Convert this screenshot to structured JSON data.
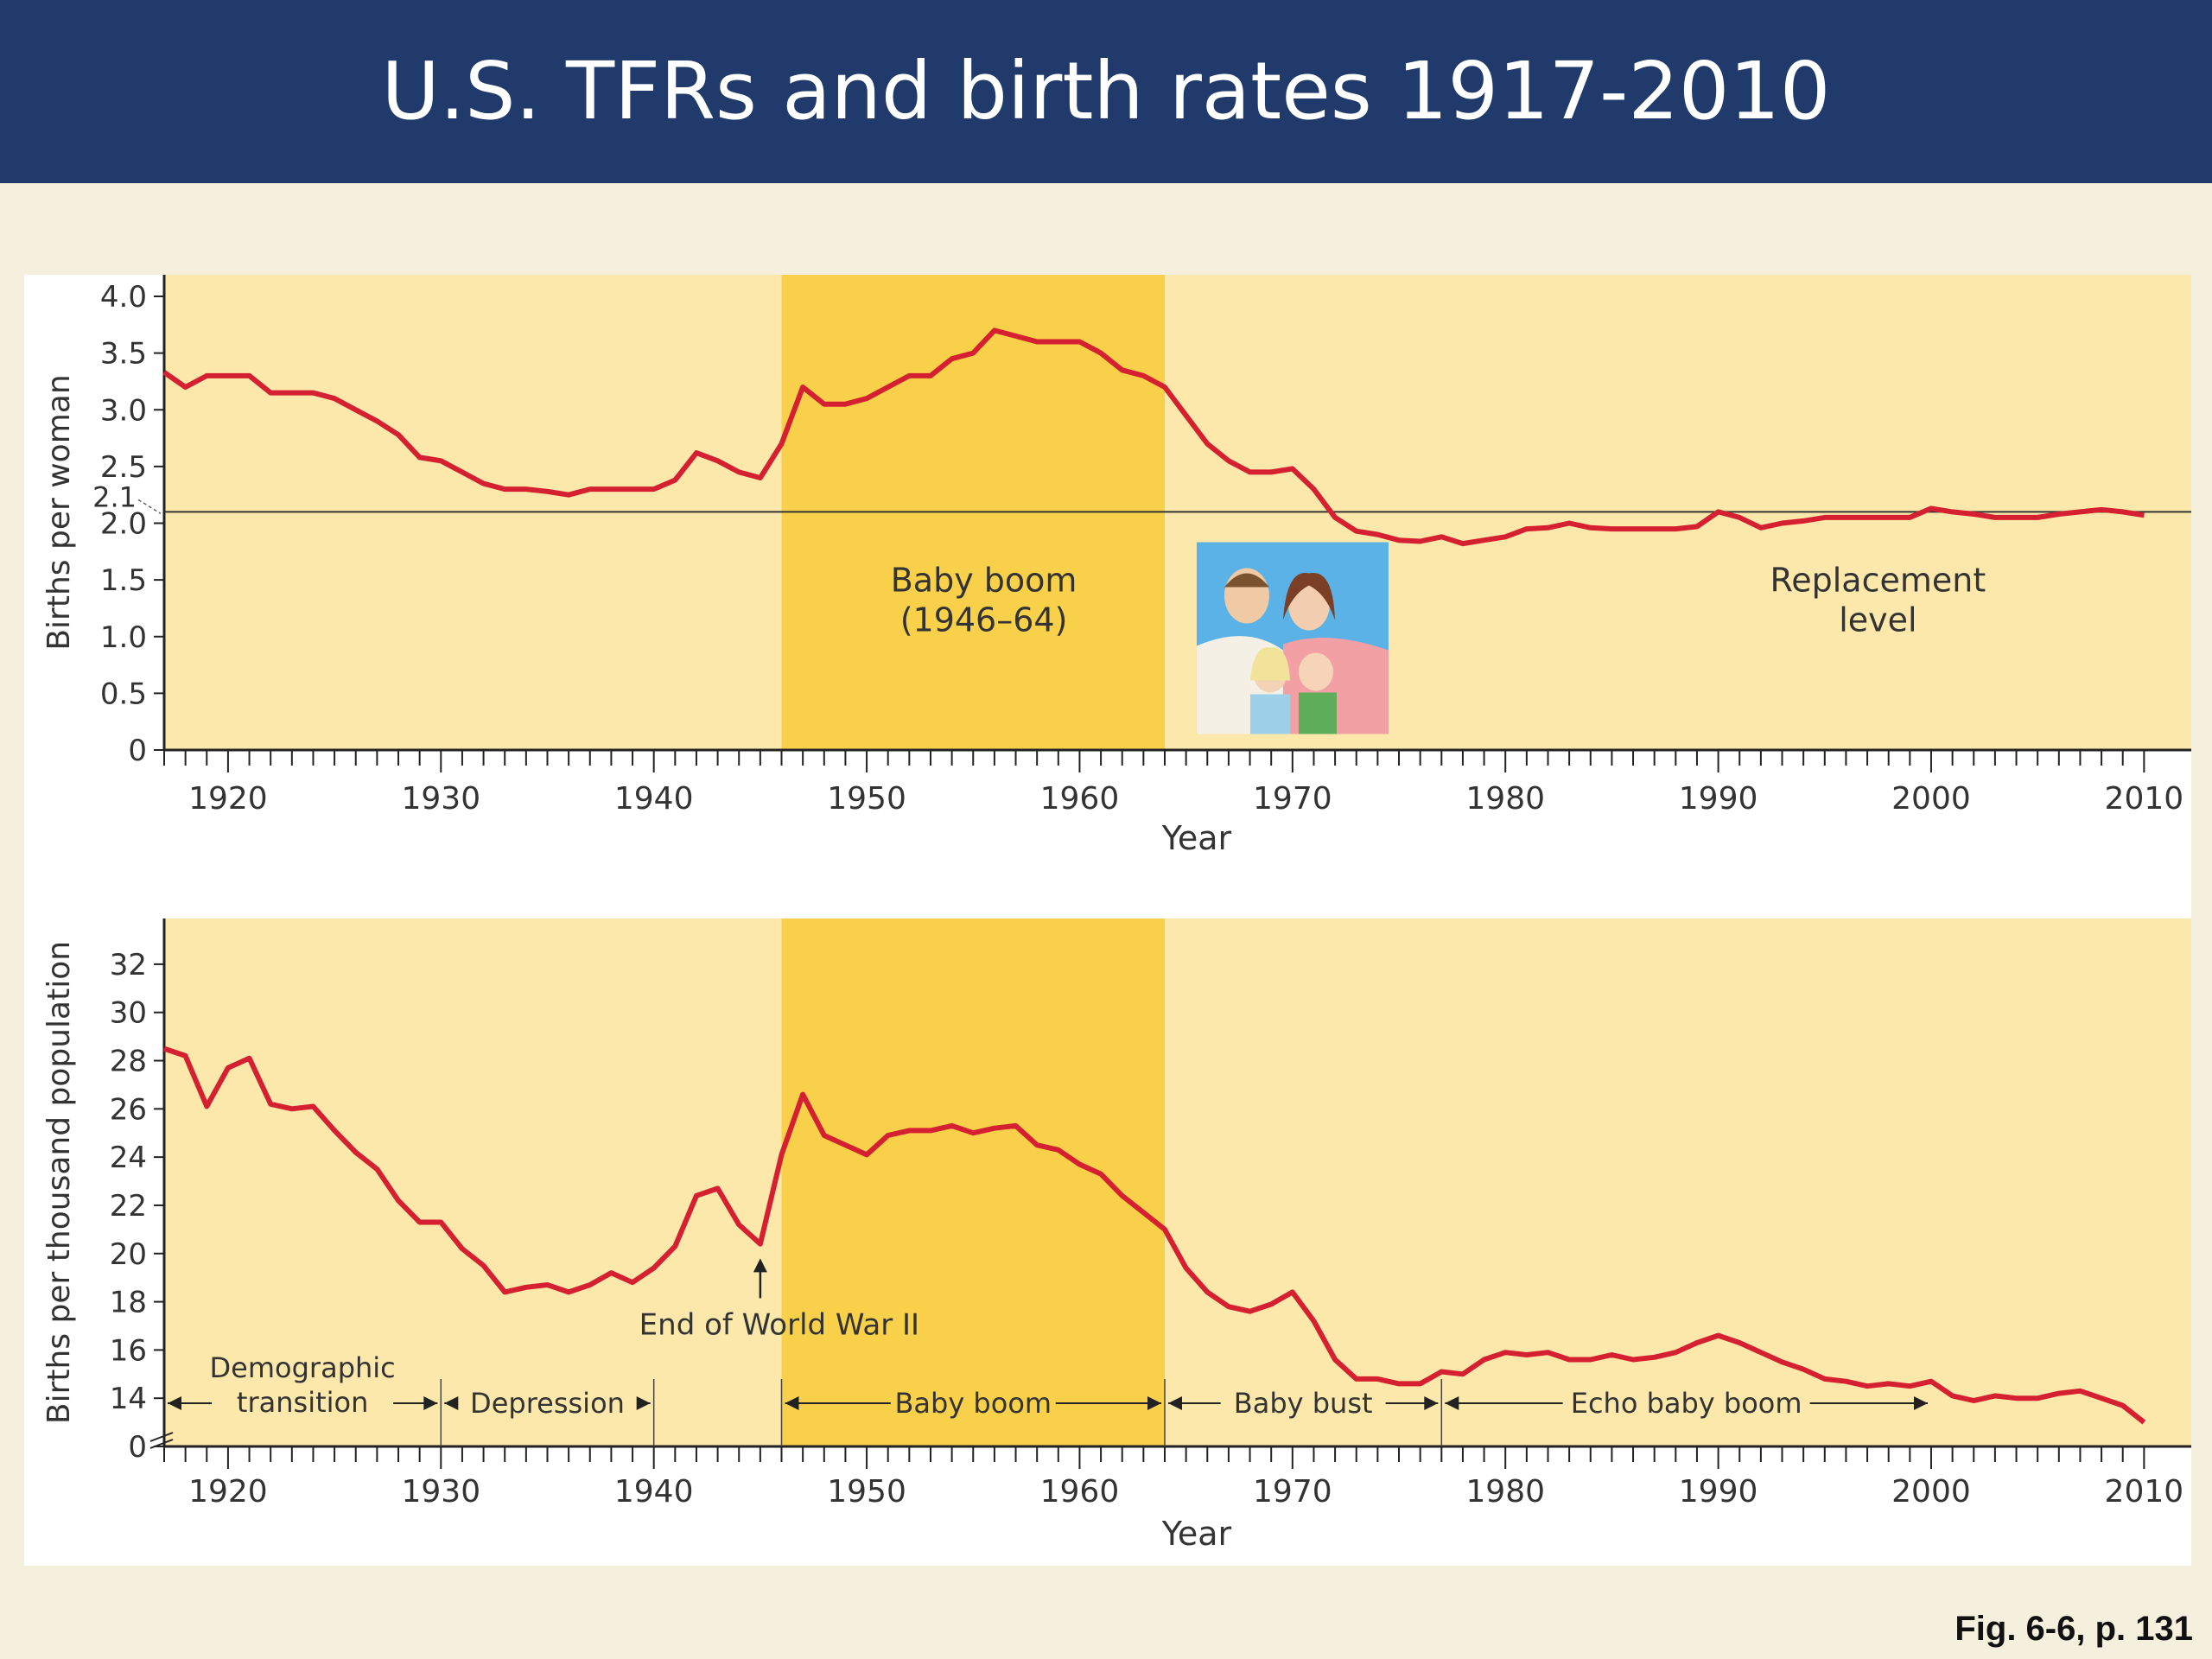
{
  "slide": {
    "title": "U.S. TFRs and birth rates 1917-2010",
    "caption": "Fig. 6-6, p. 131"
  },
  "colors": {
    "title_bar": "#1f3a6b",
    "background": "#f5efdd",
    "plot_light": "#fbe8aa",
    "plot_boom": "#f9d04a",
    "series_line": "#d42030",
    "reference_line": "#333333"
  },
  "chart_data": [
    {
      "type": "line",
      "xlabel": "Year",
      "ylabel": "Births per woman",
      "xlim": [
        1917,
        2011
      ],
      "ylim": [
        0,
        4.0
      ],
      "x_ticks": [
        1920,
        1930,
        1940,
        1950,
        1960,
        1970,
        1980,
        1990,
        2000,
        2010
      ],
      "y_ticks": [
        "0",
        "0.5",
        "1.0",
        "1.5",
        "2.0",
        "2.5",
        "3.0",
        "3.5",
        "4.0"
      ],
      "y_tick_values": [
        0,
        0.5,
        1.0,
        1.5,
        2.0,
        2.5,
        3.0,
        3.5,
        4.0
      ],
      "reference_line": {
        "value": 2.1,
        "label": "2.1"
      },
      "shaded_span": {
        "from": 1946,
        "to": 1964
      },
      "annotations": [
        {
          "lines": [
            "Baby boom",
            "(1946–64)"
          ],
          "x": 1955.5,
          "y": 1.4
        },
        {
          "lines": [
            "Replacement",
            "level"
          ],
          "x": 1997.5,
          "y": 1.4
        }
      ],
      "image": {
        "name": "family-photo",
        "description_icon": "family-photo"
      },
      "series": [
        {
          "x": [
            1917,
            1918,
            1919,
            1920,
            1921,
            1922,
            1923,
            1924,
            1925,
            1926,
            1927,
            1928,
            1929,
            1930,
            1931,
            1932,
            1933,
            1934,
            1935,
            1936,
            1937,
            1938,
            1939,
            1940,
            1941,
            1942,
            1943,
            1944,
            1945,
            1946,
            1947,
            1948,
            1949,
            1950,
            1951,
            1952,
            1953,
            1954,
            1955,
            1956,
            1957,
            1958,
            1959,
            1960,
            1961,
            1962,
            1963,
            1964,
            1965,
            1966,
            1967,
            1968,
            1969,
            1970,
            1971,
            1972,
            1973,
            1974,
            1975,
            1976,
            1977,
            1978,
            1979,
            1980,
            1981,
            1982,
            1983,
            1984,
            1985,
            1986,
            1987,
            1988,
            1989,
            1990,
            1991,
            1992,
            1993,
            1994,
            1995,
            1996,
            1997,
            1998,
            1999,
            2000,
            2001,
            2002,
            2003,
            2004,
            2005,
            2006,
            2007,
            2008,
            2009,
            2010
          ],
          "values": [
            3.33,
            3.2,
            3.3,
            3.3,
            3.3,
            3.15,
            3.15,
            3.15,
            3.1,
            3.0,
            2.9,
            2.78,
            2.58,
            2.55,
            2.45,
            2.35,
            2.3,
            2.3,
            2.28,
            2.25,
            2.3,
            2.3,
            2.3,
            2.3,
            2.38,
            2.62,
            2.55,
            2.45,
            2.4,
            2.7,
            3.2,
            3.05,
            3.05,
            3.1,
            3.2,
            3.3,
            3.3,
            3.45,
            3.5,
            3.7,
            3.65,
            3.6,
            3.6,
            3.6,
            3.5,
            3.35,
            3.3,
            3.2,
            2.95,
            2.7,
            2.55,
            2.45,
            2.45,
            2.48,
            2.3,
            2.05,
            1.93,
            1.9,
            1.85,
            1.84,
            1.88,
            1.82,
            1.85,
            1.88,
            1.95,
            1.96,
            2.0,
            1.96,
            1.95,
            1.95,
            1.95,
            1.95,
            1.97,
            2.1,
            2.05,
            1.96,
            2.0,
            2.02,
            2.05,
            2.05,
            2.05,
            2.05,
            2.05,
            2.13,
            2.1,
            2.08,
            2.05,
            2.05,
            2.05,
            2.08,
            2.1,
            2.12,
            2.1,
            2.07
          ]
        }
      ]
    },
    {
      "type": "line",
      "xlabel": "Year",
      "ylabel": "Births per thousand population",
      "xlim": [
        1917,
        2011
      ],
      "ylim": [
        12,
        33
      ],
      "axis_break": true,
      "x_ticks": [
        1920,
        1930,
        1940,
        1950,
        1960,
        1970,
        1980,
        1990,
        2000,
        2010
      ],
      "y_ticks": [
        "0",
        "14",
        "16",
        "18",
        "20",
        "22",
        "24",
        "26",
        "28",
        "30",
        "32"
      ],
      "y_tick_values": [
        12,
        14,
        16,
        18,
        20,
        22,
        24,
        26,
        28,
        30,
        32
      ],
      "shaded_span": {
        "from": 1946,
        "to": 1964
      },
      "arrow_annotation": {
        "label": "End of World War II",
        "x": 1945,
        "y": 20.3
      },
      "periods": [
        {
          "label": [
            "Demographic",
            "transition"
          ],
          "from": 1917,
          "to": 1930
        },
        {
          "label": [
            "Depression"
          ],
          "from": 1930,
          "to": 1940
        },
        {
          "label": [
            "Baby boom"
          ],
          "from": 1946,
          "to": 1964
        },
        {
          "label": [
            "Baby bust"
          ],
          "from": 1964,
          "to": 1977
        },
        {
          "label": [
            "Echo baby boom"
          ],
          "from": 1977,
          "to": 2000
        }
      ],
      "series": [
        {
          "x": [
            1917,
            1918,
            1919,
            1920,
            1921,
            1922,
            1923,
            1924,
            1925,
            1926,
            1927,
            1928,
            1929,
            1930,
            1931,
            1932,
            1933,
            1934,
            1935,
            1936,
            1937,
            1938,
            1939,
            1940,
            1941,
            1942,
            1943,
            1944,
            1945,
            1946,
            1947,
            1948,
            1949,
            1950,
            1951,
            1952,
            1953,
            1954,
            1955,
            1956,
            1957,
            1958,
            1959,
            1960,
            1961,
            1962,
            1963,
            1964,
            1965,
            1966,
            1967,
            1968,
            1969,
            1970,
            1971,
            1972,
            1973,
            1974,
            1975,
            1976,
            1977,
            1978,
            1979,
            1980,
            1981,
            1982,
            1983,
            1984,
            1985,
            1986,
            1987,
            1988,
            1989,
            1990,
            1991,
            1992,
            1993,
            1994,
            1995,
            1996,
            1997,
            1998,
            1999,
            2000,
            2001,
            2002,
            2003,
            2004,
            2005,
            2006,
            2007,
            2008,
            2009,
            2010
          ],
          "values": [
            28.5,
            28.2,
            26.1,
            27.7,
            28.1,
            26.2,
            26.0,
            26.1,
            25.1,
            24.2,
            23.5,
            22.2,
            21.3,
            21.3,
            20.2,
            19.5,
            18.4,
            18.6,
            18.7,
            18.4,
            18.7,
            19.2,
            18.8,
            19.4,
            20.3,
            22.4,
            22.7,
            21.2,
            20.4,
            24.1,
            26.6,
            24.9,
            24.5,
            24.1,
            24.9,
            25.1,
            25.1,
            25.3,
            25.0,
            25.2,
            25.3,
            24.5,
            24.3,
            23.7,
            23.3,
            22.4,
            21.7,
            21.0,
            19.4,
            18.4,
            17.8,
            17.6,
            17.9,
            18.4,
            17.2,
            15.6,
            14.8,
            14.8,
            14.6,
            14.6,
            15.1,
            15.0,
            15.6,
            15.9,
            15.8,
            15.9,
            15.6,
            15.6,
            15.8,
            15.6,
            15.7,
            15.9,
            16.3,
            16.6,
            16.3,
            15.9,
            15.5,
            15.2,
            14.8,
            14.7,
            14.5,
            14.6,
            14.5,
            14.7,
            14.1,
            13.9,
            14.1,
            14.0,
            14.0,
            14.2,
            14.3,
            14.0,
            13.7,
            13.0
          ]
        }
      ]
    }
  ]
}
